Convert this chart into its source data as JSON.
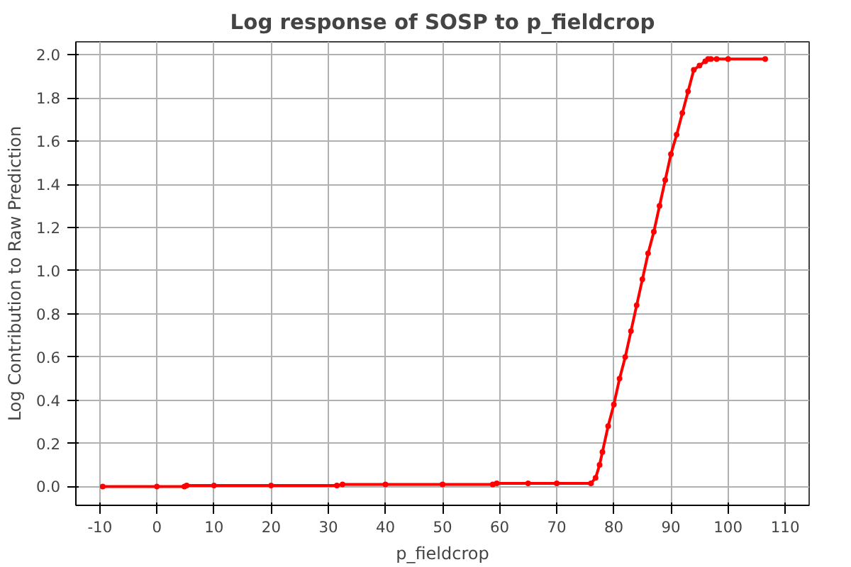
{
  "chart_data": {
    "type": "line",
    "title": "Log response of SOSP to p_fieldcrop",
    "xlabel": "p_fieldcrop",
    "ylabel": "Log Contribution to Raw Prediction",
    "series": [
      {
        "color": "#ff0000",
        "x": [
          -9.5,
          0,
          4.8,
          5.2,
          10,
          20,
          31.5,
          32.5,
          40,
          50,
          58.8,
          59.5,
          65,
          70,
          76,
          76.8,
          77.5,
          78,
          79,
          80,
          81,
          82,
          83,
          84,
          85,
          86,
          87,
          88,
          89,
          90,
          91,
          92,
          93,
          94,
          95,
          96,
          96.5,
          97,
          98,
          100,
          106.5
        ],
        "values": [
          0.0,
          0.0,
          0.0,
          0.005,
          0.005,
          0.005,
          0.005,
          0.01,
          0.01,
          0.01,
          0.01,
          0.015,
          0.015,
          0.015,
          0.015,
          0.04,
          0.1,
          0.16,
          0.28,
          0.38,
          0.5,
          0.6,
          0.72,
          0.84,
          0.96,
          1.08,
          1.18,
          1.3,
          1.42,
          1.54,
          1.63,
          1.73,
          1.83,
          1.93,
          1.95,
          1.97,
          1.98,
          1.98,
          1.98,
          1.98,
          1.98
        ]
      }
    ],
    "xlim": [
      -14.2,
      114.2
    ],
    "ylim": [
      -0.087,
      2.06
    ],
    "xticks": [
      -10,
      0,
      10,
      20,
      30,
      40,
      50,
      60,
      70,
      80,
      90,
      100,
      110
    ],
    "yticks": [
      {
        "value": 0,
        "label": "0.0"
      },
      {
        "value": 0.2,
        "label": "0.2"
      },
      {
        "value": 0.4,
        "label": "0.4"
      },
      {
        "value": 0.6,
        "label": "0.6"
      },
      {
        "value": 0.8,
        "label": "0.8"
      },
      {
        "value": 1,
        "label": "1.0"
      },
      {
        "value": 1.2,
        "label": "1.2"
      },
      {
        "value": 1.4,
        "label": "1.4"
      },
      {
        "value": 1.6,
        "label": "1.6"
      },
      {
        "value": 1.8,
        "label": "1.8"
      },
      {
        "value": 2,
        "label": "2.0"
      }
    ],
    "grid": true,
    "marker": "circle",
    "line_style": "solid"
  }
}
